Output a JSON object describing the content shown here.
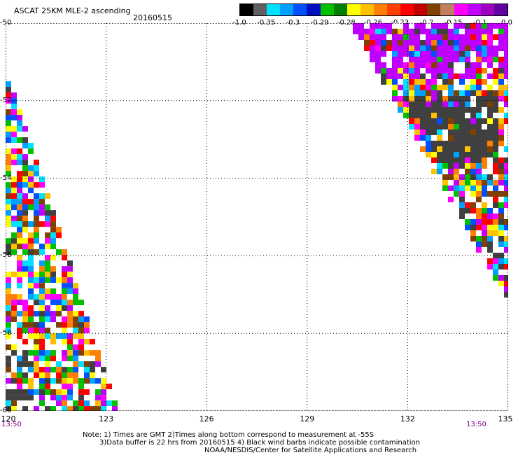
{
  "header": {
    "title": "ASCAT 25KM MLE-2 ascending",
    "date": "20160515"
  },
  "colorbar": {
    "colors": [
      "#000000",
      "#606060",
      "#00e0ff",
      "#00a0ff",
      "#0050ff",
      "#0010c0",
      "#00c000",
      "#008000",
      "#ffff00",
      "#ffc000",
      "#ff8000",
      "#ff4000",
      "#ff0000",
      "#c00000",
      "#804000",
      "#c08060",
      "#ff00ff",
      "#c000ff",
      "#a000c0",
      "#6000a0"
    ],
    "labels": [
      "-1.0",
      "-0.35",
      "-0.3",
      "-0.29",
      "-0.28",
      "-0.26",
      "-0.23",
      "-0.2",
      "-0.15",
      "-0.1",
      "0.0"
    ]
  },
  "map": {
    "lat_ticks": [
      "-50",
      "-52",
      "-54",
      "-56",
      "-58",
      "-60"
    ],
    "lon_ticks": [
      "120",
      "123",
      "126",
      "129",
      "132",
      "135"
    ],
    "lat_range": [
      -60,
      -50
    ],
    "lon_range": [
      120,
      135
    ],
    "pass_times": [
      "13:50",
      "13:50"
    ],
    "swaths": {
      "left": {
        "lon_min": 120,
        "lon_max_top": 120.1,
        "lon_max_bottom": 123.3,
        "lat_top": -51.5,
        "lat_bottom": -60
      },
      "right": {
        "lon_min_top": 130.4,
        "lon_min_bottom": 135,
        "lon_max": 135,
        "lat_top": -50,
        "lat_bottom": -57
      }
    },
    "palette": [
      "#ffffff",
      "#ffffff",
      "#ffffff",
      "#00e0ff",
      "#00a0ff",
      "#0050ff",
      "#00c000",
      "#ffff00",
      "#ffc000",
      "#ff8000",
      "#ff0000",
      "#804000",
      "#ff00ff",
      "#c000ff",
      "#404040"
    ],
    "gap_fraction": 0.25
  },
  "notes": {
    "line1": "Note: 1) Times are GMT 2)Times along bottom correspond to measurement at -55S",
    "line2": "3)Data buffer is 22 hrs from 20160515 4) Black wind barbs indicate possible contamination",
    "line3": "NOAA/NESDIS/Center for Satellite Applications and Research"
  }
}
